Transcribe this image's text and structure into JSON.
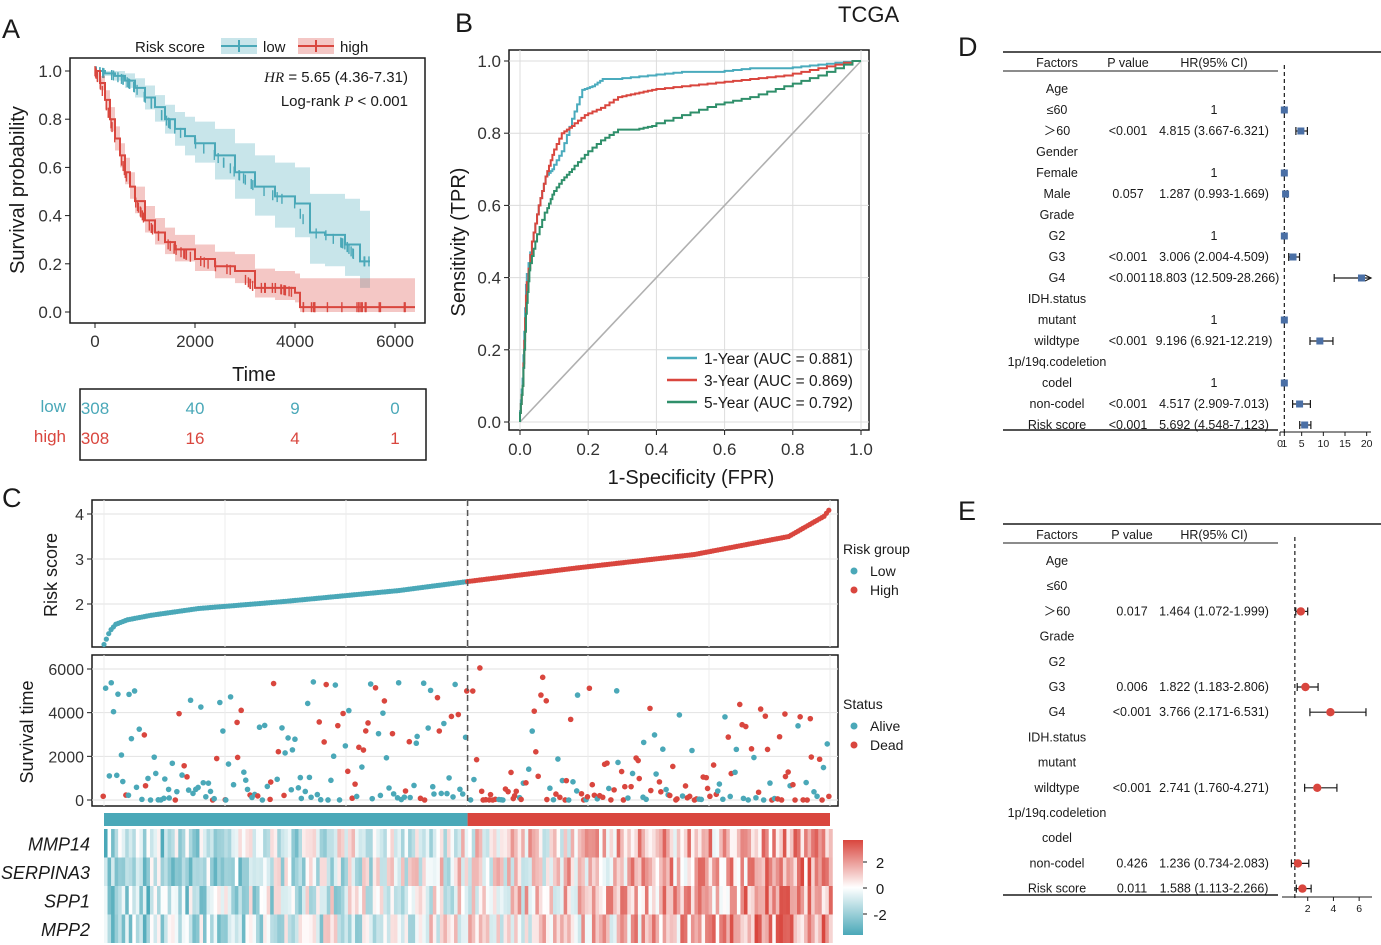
{
  "figure": {
    "dataset_label": "TCGA"
  },
  "colors": {
    "low": "#4aa8b8",
    "high": "#d9463e",
    "roc1": "#4aabbd",
    "roc3": "#d9463e",
    "roc5": "#2f8f6a",
    "forest_d": "#4a6fa5",
    "forest_e": "#d9463e"
  },
  "chart_data": [
    {
      "panel": "A",
      "type": "line",
      "subtype": "kaplan-meier",
      "xlabel": "Time",
      "ylabel": "Survival probability",
      "xlim": [
        0,
        6500
      ],
      "ylim": [
        0,
        1
      ],
      "xticks": [
        "0",
        "2000",
        "4000",
        "6000"
      ],
      "yticks": [
        "0.0",
        "0.2",
        "0.4",
        "0.6",
        "0.8",
        "1.0"
      ],
      "legend_title": "Risk score",
      "legend_position": "top",
      "annotation": {
        "hr_label": "HR",
        "hr_text": " = 5.65 (4.36-7.31)",
        "logrank_label": "Log-rank ",
        "p_label": "P",
        "p_text": " < 0.001"
      },
      "series": [
        {
          "name": "low",
          "x": [
            0,
            200,
            400,
            600,
            800,
            1000,
            1200,
            1400,
            1600,
            1800,
            2000,
            2400,
            2800,
            3200,
            3600,
            4000,
            4300,
            4600,
            5000,
            5300,
            5500
          ],
          "y": [
            1.0,
            0.99,
            0.98,
            0.96,
            0.93,
            0.89,
            0.85,
            0.8,
            0.76,
            0.73,
            0.7,
            0.65,
            0.58,
            0.52,
            0.48,
            0.45,
            0.33,
            0.32,
            0.28,
            0.21,
            0.21
          ],
          "ci_upper": [
            1.0,
            1.0,
            1.0,
            0.99,
            0.97,
            0.94,
            0.9,
            0.86,
            0.83,
            0.81,
            0.79,
            0.76,
            0.7,
            0.65,
            0.62,
            0.6,
            0.49,
            0.49,
            0.47,
            0.42,
            0.42
          ],
          "ci_lower": [
            1.0,
            0.98,
            0.96,
            0.93,
            0.89,
            0.84,
            0.79,
            0.74,
            0.69,
            0.65,
            0.62,
            0.55,
            0.47,
            0.4,
            0.35,
            0.31,
            0.2,
            0.19,
            0.15,
            0.1,
            0.1
          ]
        },
        {
          "name": "high",
          "x": [
            0,
            100,
            200,
            300,
            400,
            500,
            600,
            700,
            800,
            1000,
            1200,
            1400,
            1600,
            2000,
            2400,
            2800,
            3200,
            3600,
            4000,
            4100,
            5000,
            6400
          ],
          "y": [
            1.0,
            0.95,
            0.88,
            0.8,
            0.72,
            0.65,
            0.58,
            0.52,
            0.46,
            0.38,
            0.33,
            0.29,
            0.26,
            0.22,
            0.19,
            0.17,
            0.1,
            0.1,
            0.08,
            0.02,
            0.02,
            0.02
          ],
          "ci_upper": [
            1.0,
            0.98,
            0.92,
            0.85,
            0.77,
            0.7,
            0.64,
            0.58,
            0.52,
            0.44,
            0.39,
            0.35,
            0.32,
            0.28,
            0.25,
            0.24,
            0.18,
            0.17,
            0.16,
            0.14,
            0.14,
            0.14
          ],
          "ci_lower": [
            1.0,
            0.92,
            0.84,
            0.75,
            0.67,
            0.6,
            0.53,
            0.47,
            0.41,
            0.33,
            0.28,
            0.24,
            0.21,
            0.17,
            0.14,
            0.12,
            0.06,
            0.05,
            0.04,
            0.0,
            0.0,
            0.0
          ]
        }
      ],
      "risk_table": {
        "rows": [
          {
            "label": "low",
            "values": [
              "308",
              "40",
              "9",
              "0"
            ]
          },
          {
            "label": "high",
            "values": [
              "308",
              "16",
              "4",
              "1"
            ]
          }
        ]
      }
    },
    {
      "panel": "B",
      "type": "line",
      "subtype": "roc",
      "xlabel": "1-Specificity (FPR)",
      "ylabel": "Sensitivity (TPR)",
      "xlim": [
        0,
        1
      ],
      "ylim": [
        0,
        1
      ],
      "xticks": [
        "0.0",
        "0.2",
        "0.4",
        "0.6",
        "0.8",
        "1.0"
      ],
      "yticks": [
        "0.0",
        "0.2",
        "0.4",
        "0.6",
        "0.8",
        "1.0"
      ],
      "legend_position": "bottom-right",
      "series": [
        {
          "name": "1-Year (AUC = 0.881)",
          "fpr": [
            0,
            0.01,
            0.02,
            0.04,
            0.06,
            0.08,
            0.1,
            0.13,
            0.16,
            0.19,
            0.22,
            0.25,
            0.3,
            0.4,
            0.5,
            0.6,
            0.7,
            0.8,
            0.9,
            1.0
          ],
          "tpr": [
            0,
            0.12,
            0.38,
            0.5,
            0.6,
            0.68,
            0.7,
            0.75,
            0.84,
            0.92,
            0.93,
            0.95,
            0.95,
            0.96,
            0.97,
            0.97,
            0.98,
            0.98,
            0.99,
            1.0
          ]
        },
        {
          "name": "3-Year (AUC = 0.869)",
          "fpr": [
            0,
            0.01,
            0.02,
            0.04,
            0.06,
            0.08,
            0.1,
            0.13,
            0.16,
            0.2,
            0.25,
            0.3,
            0.35,
            0.4,
            0.5,
            0.6,
            0.7,
            0.8,
            0.9,
            1.0
          ],
          "tpr": [
            0,
            0.1,
            0.35,
            0.5,
            0.6,
            0.68,
            0.74,
            0.8,
            0.82,
            0.85,
            0.87,
            0.9,
            0.91,
            0.92,
            0.93,
            0.94,
            0.95,
            0.96,
            0.98,
            1.0
          ]
        },
        {
          "name": "5-Year (AUC = 0.792)",
          "fpr": [
            0,
            0.01,
            0.02,
            0.03,
            0.05,
            0.08,
            0.1,
            0.13,
            0.16,
            0.2,
            0.25,
            0.3,
            0.35,
            0.4,
            0.5,
            0.6,
            0.7,
            0.8,
            0.9,
            1.0
          ],
          "tpr": [
            0,
            0.1,
            0.3,
            0.42,
            0.5,
            0.58,
            0.63,
            0.67,
            0.7,
            0.74,
            0.78,
            0.81,
            0.81,
            0.82,
            0.85,
            0.88,
            0.9,
            0.93,
            0.96,
            1.0
          ]
        }
      ]
    },
    {
      "panel": "C-top",
      "type": "scatter",
      "ylabel": "Risk score",
      "ylim": [
        1,
        4.2
      ],
      "yticks": [
        "2",
        "3",
        "4"
      ],
      "n_patients": 616,
      "cutoff_index": 308,
      "legend_title": "Risk group",
      "legend_entries": [
        "Low",
        "High"
      ],
      "risk_score_profile": {
        "patient_index": [
          0,
          5,
          10,
          20,
          40,
          80,
          150,
          250,
          308,
          400,
          500,
          580,
          610,
          616
        ],
        "risk_score": [
          1.1,
          1.4,
          1.55,
          1.65,
          1.75,
          1.9,
          2.05,
          2.3,
          2.5,
          2.8,
          3.1,
          3.5,
          3.95,
          4.15
        ]
      }
    },
    {
      "panel": "C-middle",
      "type": "scatter",
      "ylabel": "Survival time",
      "ylim": [
        0,
        6500
      ],
      "yticks": [
        "0",
        "2000",
        "4000",
        "6000"
      ],
      "legend_title": "Status",
      "legend_entries": [
        "Alive",
        "Dead"
      ]
    },
    {
      "panel": "C-bottom",
      "type": "heatmap",
      "rows": [
        "MMP14",
        "SERPINA3",
        "SPP1",
        "MPP2"
      ],
      "colorbar_ticks": [
        "2",
        "0",
        "-2"
      ],
      "zlim": [
        -3,
        3
      ]
    },
    {
      "panel": "D",
      "type": "table",
      "subtype": "forest",
      "headers": [
        "Factors",
        "P value",
        "HR(95% CI)"
      ],
      "axis_ticks": [
        "0",
        "1",
        "5",
        "10",
        "15",
        "20"
      ],
      "axis_range": [
        0,
        21
      ],
      "rows": [
        {
          "factor": "Age",
          "p": "",
          "hr_text": ""
        },
        {
          "factor": "≤60",
          "p": "",
          "hr_text": "1",
          "hr": 1,
          "lo": 1,
          "hi": 1
        },
        {
          "factor": "＞60",
          "p": "<0.001",
          "hr_text": "4.815 (3.667-6.321)",
          "hr": 4.815,
          "lo": 3.667,
          "hi": 6.321
        },
        {
          "factor": "Gender",
          "p": "",
          "hr_text": ""
        },
        {
          "factor": "Female",
          "p": "",
          "hr_text": "1",
          "hr": 1,
          "lo": 1,
          "hi": 1
        },
        {
          "factor": "Male",
          "p": "0.057",
          "hr_text": "1.287 (0.993-1.669)",
          "hr": 1.287,
          "lo": 0.993,
          "hi": 1.669
        },
        {
          "factor": "Grade",
          "p": "",
          "hr_text": ""
        },
        {
          "factor": "G2",
          "p": "",
          "hr_text": "1",
          "hr": 1,
          "lo": 1,
          "hi": 1
        },
        {
          "factor": "G3",
          "p": "<0.001",
          "hr_text": "3.006 (2.004-4.509)",
          "hr": 3.006,
          "lo": 2.004,
          "hi": 4.509
        },
        {
          "factor": "G4",
          "p": "<0.001",
          "hr_text": "18.803 (12.509-28.266)",
          "hr": 18.803,
          "lo": 12.509,
          "hi": 28.266
        },
        {
          "factor": "IDH.status",
          "p": "",
          "hr_text": ""
        },
        {
          "factor": "mutant",
          "p": "",
          "hr_text": "1",
          "hr": 1,
          "lo": 1,
          "hi": 1
        },
        {
          "factor": "wildtype",
          "p": "<0.001",
          "hr_text": "9.196 (6.921-12.219)",
          "hr": 9.196,
          "lo": 6.921,
          "hi": 12.219
        },
        {
          "factor": "1p/19q.codeletion",
          "p": "",
          "hr_text": ""
        },
        {
          "factor": "codel",
          "p": "",
          "hr_text": "1",
          "hr": 1,
          "lo": 1,
          "hi": 1
        },
        {
          "factor": "non-codel",
          "p": "<0.001",
          "hr_text": "4.517 (2.909-7.013)",
          "hr": 4.517,
          "lo": 2.909,
          "hi": 7.013
        },
        {
          "factor": "Risk score",
          "p": "<0.001",
          "hr_text": "5.692 (4.548-7.123)",
          "hr": 5.692,
          "lo": 4.548,
          "hi": 7.123
        }
      ]
    },
    {
      "panel": "E",
      "type": "table",
      "subtype": "forest",
      "headers": [
        "Factors",
        "P value",
        "HR(95% CI)"
      ],
      "axis_ticks": [
        "2",
        "4",
        "6"
      ],
      "axis_range": [
        0,
        7
      ],
      "rows": [
        {
          "factor": "Age",
          "p": "",
          "hr_text": ""
        },
        {
          "factor": "≤60",
          "p": "",
          "hr_text": ""
        },
        {
          "factor": "＞60",
          "p": "0.017",
          "hr_text": "1.464 (1.072-1.999)",
          "hr": 1.464,
          "lo": 1.072,
          "hi": 1.999
        },
        {
          "factor": "Grade",
          "p": "",
          "hr_text": ""
        },
        {
          "factor": "G2",
          "p": "",
          "hr_text": ""
        },
        {
          "factor": "G3",
          "p": "0.006",
          "hr_text": "1.822 (1.183-2.806)",
          "hr": 1.822,
          "lo": 1.183,
          "hi": 2.806
        },
        {
          "factor": "G4",
          "p": "<0.001",
          "hr_text": "3.766 (2.171-6.531)",
          "hr": 3.766,
          "lo": 2.171,
          "hi": 6.531
        },
        {
          "factor": "IDH.status",
          "p": "",
          "hr_text": ""
        },
        {
          "factor": "mutant",
          "p": "",
          "hr_text": ""
        },
        {
          "factor": "wildtype",
          "p": "<0.001",
          "hr_text": "2.741 (1.760-4.271)",
          "hr": 2.741,
          "lo": 1.76,
          "hi": 4.271
        },
        {
          "factor": "1p/19q.codeletion",
          "p": "",
          "hr_text": ""
        },
        {
          "factor": "codel",
          "p": "",
          "hr_text": ""
        },
        {
          "factor": "non-codel",
          "p": "0.426",
          "hr_text": "1.236 (0.734-2.083)",
          "hr": 1.236,
          "lo": 0.734,
          "hi": 2.083
        },
        {
          "factor": "Risk score",
          "p": "0.011",
          "hr_text": "1.588 (1.113-2.266)",
          "hr": 1.588,
          "lo": 1.113,
          "hi": 2.266
        }
      ]
    }
  ],
  "panels": {
    "a": "A",
    "b": "B",
    "c": "C",
    "d": "D",
    "e": "E"
  }
}
